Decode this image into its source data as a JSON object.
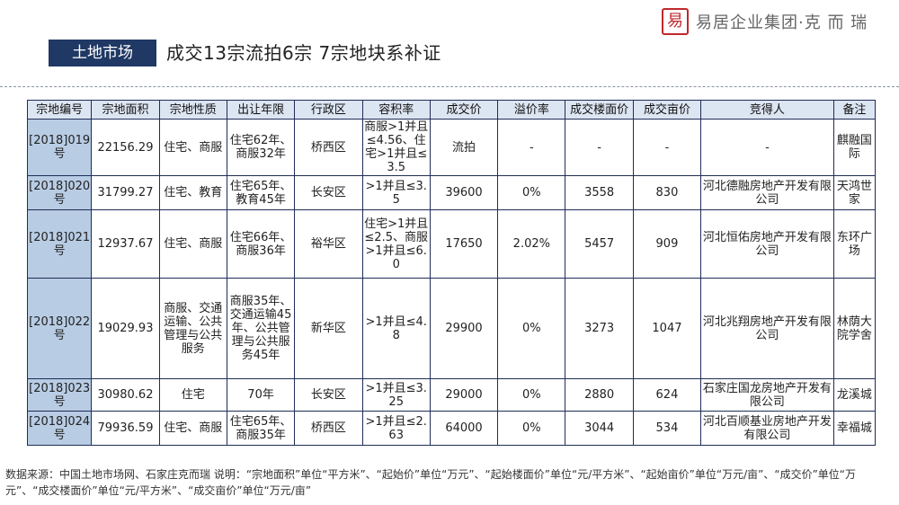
{
  "header": {
    "section_tag": "土地市场",
    "headline": "成交13宗流拍6宗 7宗地块系补证",
    "brand_logo": "易",
    "brand_text": "易居企业集团·克 而 瑞"
  },
  "table": {
    "columns": [
      "宗地编号",
      "宗地面积",
      "宗地性质",
      "出让年限",
      "行政区",
      "容积率",
      "成交价",
      "溢价率",
      "成交楼面价",
      "成交亩价",
      "竞得人",
      "备注"
    ],
    "rows": [
      [
        "[2018]019号",
        "22156.29",
        "住宅、商服",
        "住宅62年、商服32年",
        "桥西区",
        "商服>1并且≤4.56、住宅>1并且≤3.5",
        "流拍",
        "-",
        "-",
        "-",
        "-",
        "麒融国际"
      ],
      [
        "[2018]020号",
        "31799.27",
        "住宅、教育",
        "住宅65年、教育45年",
        "长安区",
        ">1并且≤3.5",
        "39600",
        "0%",
        "3558",
        "830",
        "河北德融房地产开发有限公司",
        "天鸿世家"
      ],
      [
        "[2018]021号",
        "12937.67",
        "住宅、商服",
        "住宅66年、商服36年",
        "裕华区",
        "住宅>1并且≤2.5、商服>1并且≤6.0",
        "17650",
        "2.02%",
        "5457",
        "909",
        "河北恒佑房地产开发有限公司",
        "东环广场"
      ],
      [
        "[2018]022号",
        "19029.93",
        "商服、交通运输、公共管理与公共服务",
        "商服35年、交通运输45年、公共管理与公共服务45年",
        "新华区",
        ">1并且≤4.8",
        "29900",
        "0%",
        "3273",
        "1047",
        "河北兆翔房地产开发有限公司",
        "林荫大院学舍"
      ],
      [
        "[2018]023号",
        "30980.62",
        "住宅",
        "70年",
        "长安区",
        ">1并且≤3.25",
        "29000",
        "0%",
        "2880",
        "624",
        "石家庄国龙房地产开发有限公司",
        "龙溪城"
      ],
      [
        "[2018]024号",
        "79936.59",
        "住宅、商服",
        "住宅65年、商服35年",
        "桥西区",
        ">1并且≤2.63",
        "64000",
        "0%",
        "3044",
        "534",
        "河北百顺基业房地产开发有限公司",
        "幸福城"
      ]
    ]
  },
  "footnote": "数据来源：中国土地市场网、石家庄克而瑞 说明：“宗地面积”单位“平方米”、“起始价”单位“万元”、“起始楼面价”单位“元/平方米”、“起始亩价”单位“万元/亩”、“成交价”单位“万元”、“成交楼面价”单位“元/平方米”、“成交亩价”单位“万元/亩”"
}
